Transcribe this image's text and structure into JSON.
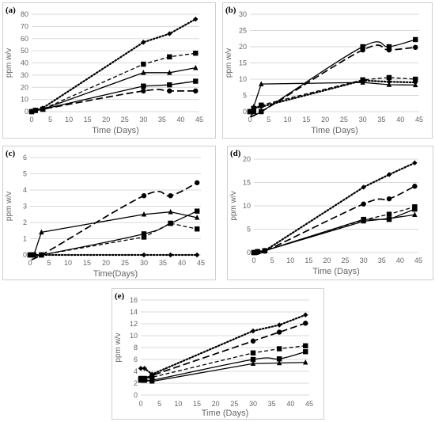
{
  "colors": {
    "series": "#000000",
    "grid": "#d9d9d9",
    "axis_text": "#666666",
    "border": "#cfcfcf"
  },
  "chart_data": [
    {
      "type": "line",
      "panel_label": "(a)",
      "xlabel": "Time (Days)",
      "ylabel": "ppm w/v",
      "xlim": [
        0,
        45
      ],
      "ylim": [
        0,
        80
      ],
      "xticks": [
        0,
        5,
        10,
        15,
        20,
        25,
        30,
        35,
        40,
        45
      ],
      "yticks": [
        0,
        10,
        20,
        30,
        40,
        50,
        60,
        70,
        80
      ],
      "grid": "horizontal",
      "legend": "none",
      "series": [
        {
          "marker": "diamond",
          "dash": "dotted",
          "smooth": false,
          "x": [
            0,
            1,
            3,
            30,
            37,
            44
          ],
          "y": [
            0,
            1,
            3,
            57,
            64,
            76
          ]
        },
        {
          "marker": "square",
          "dash": "dashed",
          "smooth": false,
          "x": [
            0,
            1,
            3,
            30,
            37,
            44
          ],
          "y": [
            0,
            1,
            2,
            39,
            45,
            48
          ]
        },
        {
          "marker": "triangle",
          "dash": "solid",
          "smooth": false,
          "x": [
            0,
            1,
            3,
            30,
            37,
            44
          ],
          "y": [
            0,
            1,
            2,
            32,
            32,
            36
          ]
        },
        {
          "marker": "square",
          "dash": "solid",
          "smooth": false,
          "x": [
            0,
            1,
            3,
            30,
            37,
            44
          ],
          "y": [
            0,
            1,
            2,
            21,
            22,
            25
          ]
        },
        {
          "marker": "circle",
          "dash": "long-dash",
          "smooth": true,
          "x": [
            0,
            1,
            3,
            30,
            37,
            44
          ],
          "y": [
            0,
            1,
            2,
            17,
            17,
            17
          ]
        }
      ]
    },
    {
      "type": "line",
      "panel_label": "(b)",
      "xlabel": "Time (Days)",
      "ylabel": "ppm w/v",
      "xlim": [
        0,
        45
      ],
      "ylim": [
        0,
        30
      ],
      "xticks": [
        0,
        5,
        10,
        15,
        20,
        25,
        30,
        35,
        40,
        45
      ],
      "yticks": [
        0,
        5,
        10,
        15,
        20,
        25,
        30
      ],
      "grid": "horizontal",
      "legend": "none",
      "series": [
        {
          "marker": "square",
          "dash": "solid",
          "smooth": true,
          "x": [
            0,
            1,
            3,
            30,
            37,
            44
          ],
          "y": [
            0,
            0,
            0,
            20,
            20,
            22.2
          ]
        },
        {
          "marker": "circle",
          "dash": "long-dash",
          "smooth": true,
          "x": [
            0,
            1,
            3,
            30,
            37,
            44
          ],
          "y": [
            0,
            0,
            0,
            19,
            19,
            19.8
          ]
        },
        {
          "marker": "square",
          "dash": "dashed",
          "smooth": false,
          "x": [
            0,
            1,
            3,
            30,
            37,
            44
          ],
          "y": [
            0,
            1,
            2,
            9.8,
            10.5,
            10
          ]
        },
        {
          "marker": "diamond",
          "dash": "dotted",
          "smooth": false,
          "x": [
            0,
            1,
            3,
            30,
            37,
            44
          ],
          "y": [
            0,
            1,
            1.5,
            9.6,
            9.2,
            9
          ]
        },
        {
          "marker": "triangle",
          "dash": "solid",
          "smooth": false,
          "x": [
            0,
            1,
            3,
            30,
            37,
            44
          ],
          "y": [
            0,
            1.5,
            8.5,
            9,
            8.3,
            8.2
          ]
        }
      ]
    },
    {
      "type": "line",
      "panel_label": "(c)",
      "xlabel": "Time(Days)",
      "ylabel": "ppm w/v",
      "xlim": [
        0,
        45
      ],
      "ylim": [
        0,
        6
      ],
      "xticks": [
        0,
        5,
        10,
        15,
        20,
        25,
        30,
        35,
        40,
        45
      ],
      "yticks": [
        0,
        1,
        2,
        3,
        4,
        5,
        6
      ],
      "grid": "horizontal",
      "legend": "none",
      "series": [
        {
          "marker": "circle",
          "dash": "long-dash",
          "smooth": true,
          "x": [
            0,
            1,
            3,
            30,
            37,
            44
          ],
          "y": [
            0,
            0,
            0,
            3.65,
            3.65,
            4.45
          ]
        },
        {
          "marker": "triangle",
          "dash": "solid",
          "smooth": false,
          "x": [
            0,
            1,
            3,
            30,
            37,
            44
          ],
          "y": [
            0,
            0,
            1.4,
            2.5,
            2.65,
            2.3
          ]
        },
        {
          "marker": "square",
          "dash": "solid",
          "smooth": true,
          "x": [
            0,
            1,
            3,
            30,
            37,
            44
          ],
          "y": [
            0,
            0,
            0,
            1.3,
            1.95,
            2.7
          ]
        },
        {
          "marker": "square",
          "dash": "dashed",
          "smooth": false,
          "x": [
            0,
            1,
            3,
            30,
            37,
            44
          ],
          "y": [
            0,
            0,
            0,
            1.1,
            1.95,
            1.6
          ]
        },
        {
          "marker": "diamond",
          "dash": "dotted",
          "smooth": false,
          "x": [
            0,
            1,
            3,
            30,
            37,
            44
          ],
          "y": [
            0,
            0,
            0,
            0,
            0,
            0
          ]
        }
      ]
    },
    {
      "type": "line",
      "panel_label": "(d)",
      "xlabel": "Time (Days)",
      "ylabel": "ppm w/v",
      "xlim": [
        0,
        45
      ],
      "ylim": [
        0,
        20
      ],
      "xticks": [
        0,
        5,
        10,
        15,
        20,
        25,
        30,
        35,
        40,
        45
      ],
      "yticks": [
        0,
        5,
        10,
        15,
        20
      ],
      "grid": "horizontal",
      "legend": "none",
      "series": [
        {
          "marker": "diamond",
          "dash": "dotted",
          "smooth": false,
          "x": [
            0,
            1,
            3,
            30,
            37,
            44
          ],
          "y": [
            0,
            0.2,
            0.4,
            14,
            16.7,
            19.2
          ]
        },
        {
          "marker": "circle",
          "dash": "long-dash",
          "smooth": true,
          "x": [
            0,
            1,
            3,
            30,
            37,
            44
          ],
          "y": [
            0,
            0.2,
            0.3,
            10.4,
            11.5,
            14.2
          ]
        },
        {
          "marker": "square",
          "dash": "dashed",
          "smooth": false,
          "x": [
            0,
            1,
            3,
            30,
            37,
            44
          ],
          "y": [
            0,
            0.2,
            0.4,
            7,
            8.2,
            9.8
          ]
        },
        {
          "marker": "square",
          "dash": "solid",
          "smooth": false,
          "x": [
            0,
            1,
            3,
            30,
            37,
            44
          ],
          "y": [
            0,
            0.2,
            0.4,
            7.1,
            7.1,
            9.3
          ]
        },
        {
          "marker": "triangle",
          "dash": "solid",
          "smooth": false,
          "x": [
            0,
            1,
            3,
            30,
            37,
            44
          ],
          "y": [
            0,
            0.2,
            0.4,
            6.7,
            7.3,
            8.1
          ]
        }
      ]
    },
    {
      "type": "line",
      "panel_label": "(e)",
      "xlabel": "Time (Days)",
      "ylabel": "ppm w/v",
      "xlim": [
        0,
        45
      ],
      "ylim": [
        0,
        16
      ],
      "xticks": [
        0,
        5,
        10,
        15,
        20,
        25,
        30,
        35,
        40,
        45
      ],
      "yticks": [
        0,
        2,
        4,
        6,
        8,
        10,
        12,
        14,
        16
      ],
      "grid": "horizontal",
      "legend": "none",
      "series": [
        {
          "marker": "diamond",
          "dash": "dotted",
          "smooth": false,
          "x": [
            0,
            1,
            3,
            30,
            37,
            44
          ],
          "y": [
            4.5,
            4.5,
            3.5,
            10.8,
            11.8,
            13.5
          ]
        },
        {
          "marker": "circle",
          "dash": "long-dash",
          "smooth": true,
          "x": [
            0,
            1,
            3,
            30,
            37,
            44
          ],
          "y": [
            2.8,
            2.8,
            3.3,
            9.1,
            10.6,
            12.1
          ]
        },
        {
          "marker": "square",
          "dash": "dashed",
          "smooth": false,
          "x": [
            0,
            1,
            3,
            30,
            37,
            44
          ],
          "y": [
            2.8,
            2.8,
            3,
            7.1,
            7.8,
            8.3
          ]
        },
        {
          "marker": "square",
          "dash": "solid",
          "smooth": true,
          "x": [
            0,
            1,
            3,
            30,
            37,
            44
          ],
          "y": [
            2.5,
            2.5,
            2.5,
            6,
            6.1,
            7.3
          ]
        },
        {
          "marker": "triangle",
          "dash": "solid",
          "smooth": false,
          "x": [
            0,
            1,
            3,
            30,
            37,
            44
          ],
          "y": [
            2.7,
            2.7,
            2.3,
            5.3,
            5.4,
            5.5
          ]
        }
      ]
    }
  ]
}
